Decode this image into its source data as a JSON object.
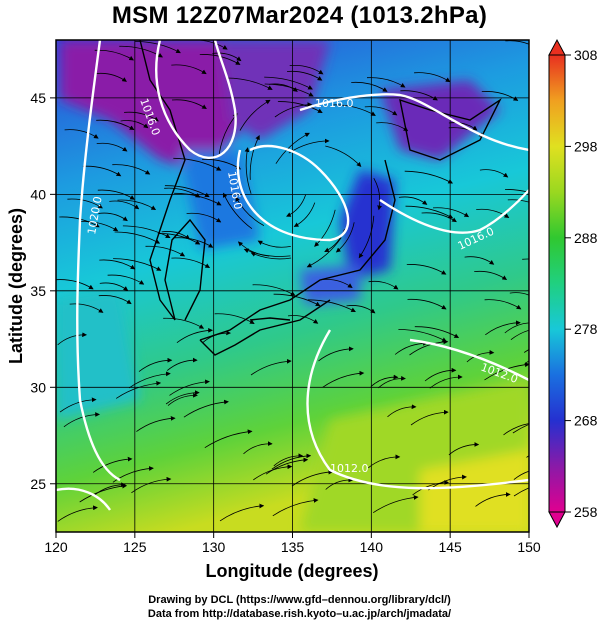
{
  "title": "MSM 12Z07Mar2024 (1013.2hPa)",
  "x_axis": {
    "label": "Longitude (degrees)",
    "ticks": [
      "120",
      "125",
      "130",
      "135",
      "140",
      "145",
      "150"
    ]
  },
  "y_axis": {
    "label": "Latitude  (degrees)",
    "ticks": [
      "25",
      "30",
      "35",
      "40",
      "45"
    ]
  },
  "colorbar": {
    "ticks": [
      "258",
      "268",
      "278",
      "288",
      "298",
      "308"
    ]
  },
  "contour_labels": [
    "1016.0",
    "1016.0",
    "1016.0",
    "1020.0",
    "1016.0",
    "1012.0",
    "1012.0"
  ],
  "footer": {
    "line1": "Drawing by DCL (https://www.gfd–dennou.org/library/dcl/)",
    "line2": "Data from http://database.rish.kyoto–u.ac.jp/arch/jmadata/"
  },
  "colors": {
    "cold": "#8a1aa8",
    "cool": "#2b47d8",
    "mid": "#18c8d8",
    "warm": "#3ec93a",
    "hot": "#e0e020",
    "contour": "#ffffff"
  }
}
